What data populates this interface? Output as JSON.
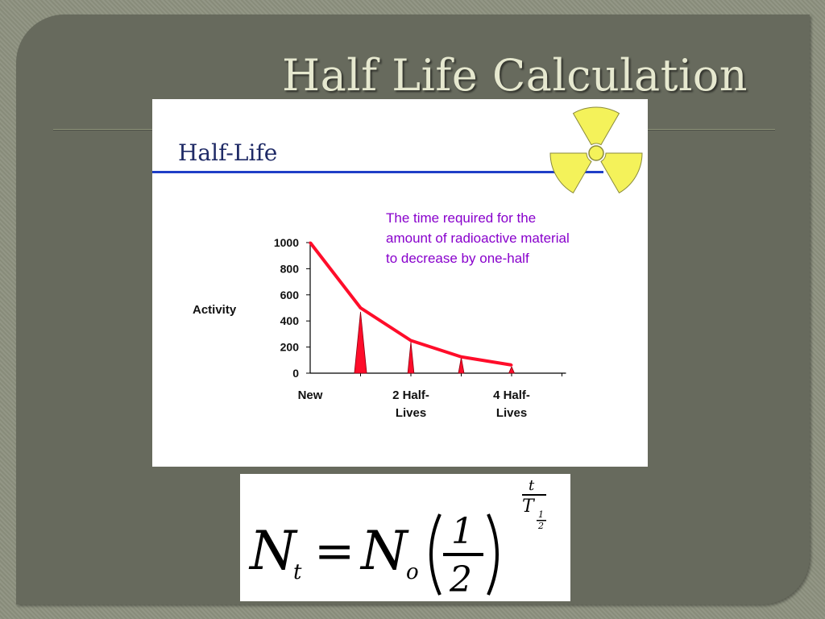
{
  "slide": {
    "title": "Half Life Calculation"
  },
  "chart_card": {
    "heading": "Half-Life",
    "description_lines": [
      "The time required for the",
      "amount of radioactive material",
      "to decrease by one-half"
    ],
    "colors": {
      "heading_rule": "#1f3fc7",
      "description": "#8800cc",
      "curve": "#ff0d2a",
      "spikes": "#ff0d2a",
      "hazard_yellow": "#f4f25a",
      "hazard_outline": "#8a8a3c"
    },
    "icon": "radiation-hazard-icon"
  },
  "chart_data": {
    "type": "line",
    "ylabel": "Activity",
    "ylim": [
      0,
      1000
    ],
    "yticks": [
      "0",
      "200",
      "400",
      "600",
      "800",
      "1000"
    ],
    "xtick_labels": [
      {
        "lines": [
          "New"
        ],
        "x": 0
      },
      {
        "lines": [
          "2 Half-",
          "Lives"
        ],
        "x": 2
      },
      {
        "lines": [
          "4 Half-",
          "Lives"
        ],
        "x": 4
      }
    ],
    "xlim": [
      0,
      5
    ],
    "series": [
      {
        "x": [
          0,
          1,
          2,
          3,
          4
        ],
        "values": [
          1000,
          500,
          250,
          125,
          62.5
        ]
      }
    ],
    "spikes": [
      {
        "x": 1,
        "value": 470
      },
      {
        "x": 2,
        "value": 240
      },
      {
        "x": 3,
        "value": 120
      },
      {
        "x": 4,
        "value": 50
      }
    ]
  },
  "formula": {
    "lhs_symbol": "N",
    "lhs_subscript": "t",
    "equals": "=",
    "rhs_symbol": "N",
    "rhs_subscript": "o",
    "fraction_numerator": "1",
    "fraction_denominator": "2",
    "exponent_numerator": "t",
    "exponent_denominator_symbol": "T",
    "exponent_denominator_sub_numerator": "1",
    "exponent_denominator_sub_denominator": "2"
  }
}
